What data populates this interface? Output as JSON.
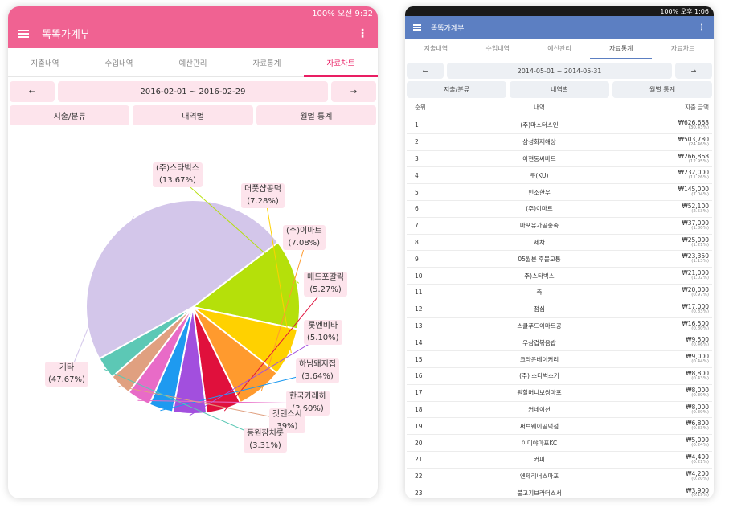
{
  "left": {
    "status": {
      "text": "100% 오전 9:32"
    },
    "app_title": "똑똑가계부",
    "tabs": [
      {
        "label": "지출내역"
      },
      {
        "label": "수입내역"
      },
      {
        "label": "예산관리"
      },
      {
        "label": "자료통계"
      },
      {
        "label": "자료차트"
      }
    ],
    "active_tab": 4,
    "date": {
      "prev": "←",
      "range": "2016-02-01 ~ 2016-02-29",
      "next": "→"
    },
    "buttons": {
      "category": "지출/분류",
      "detail": "내역별",
      "monthly": "월별 통계"
    }
  },
  "chart_data": {
    "type": "pie",
    "slices": [
      {
        "name": "(주)스타벅스",
        "value": 13.67,
        "label": "(13.67%)",
        "color": "#b5e00a"
      },
      {
        "name": "더풋샵공덕",
        "value": 7.28,
        "label": "(7.28%)",
        "color": "#ffd100"
      },
      {
        "name": "(주)이마트",
        "value": 7.08,
        "label": "(7.08%)",
        "color": "#ff9a2e"
      },
      {
        "name": "매드포갈릭",
        "value": 5.27,
        "label": "(5.27%)",
        "color": "#e0103c"
      },
      {
        "name": "롯엔비타",
        "value": 5.1,
        "label": "(5.10%)",
        "color": "#a24fde"
      },
      {
        "name": "하남돼지집",
        "value": 3.64,
        "label": "(3.64%)",
        "color": "#1e9af0"
      },
      {
        "name": "한국카레하",
        "value": 3.6,
        "label": "(3.60%)",
        "color": "#e86bc7"
      },
      {
        "name": "갓텐스시",
        "value": 3.39,
        "label": "39%)",
        "color": "#e0a080"
      },
      {
        "name": "동원참치롯",
        "value": 3.31,
        "label": "(3.31%)",
        "color": "#5cc8b5"
      },
      {
        "name": "기타",
        "value": 47.67,
        "label": "(47.67%)",
        "color": "#d3c6ea"
      }
    ]
  },
  "right": {
    "status": {
      "text": "100% 오후 1:06"
    },
    "app_title": "똑똑가계부",
    "tabs": [
      {
        "label": "지출내역"
      },
      {
        "label": "수입내역"
      },
      {
        "label": "예산관리"
      },
      {
        "label": "자료통계"
      },
      {
        "label": "자료차트"
      }
    ],
    "active_tab": 3,
    "date": {
      "prev": "←",
      "range": "2014-05-01 ~ 2014-05-31",
      "next": "→"
    },
    "buttons": {
      "category": "지출/분류",
      "detail": "내역별",
      "monthly": "월별 통계"
    },
    "table": {
      "headers": {
        "rank": "순위",
        "name": "내역",
        "amount": "지출 금액"
      },
      "rows": [
        {
          "rank": "1",
          "name": "(주)마스터스인",
          "amount": "₩626,668",
          "pct": "(30.43%)"
        },
        {
          "rank": "2",
          "name": "삼성화재해상",
          "amount": "₩503,780",
          "pct": "(24.46%)"
        },
        {
          "rank": "3",
          "name": "아현동씨바트",
          "amount": "₩266,868",
          "pct": "(12.95%)"
        },
        {
          "rank": "4",
          "name": "쿠(KU)",
          "amount": "₩232,000",
          "pct": "(11.26%)"
        },
        {
          "rank": "5",
          "name": "민소한우",
          "amount": "₩145,000",
          "pct": "(7.04%)"
        },
        {
          "rank": "6",
          "name": "(주)이마트",
          "amount": "₩52,100",
          "pct": "(2.53%)"
        },
        {
          "rank": "7",
          "name": "마포유가공송족",
          "amount": "₩37,000",
          "pct": "(1.80%)"
        },
        {
          "rank": "8",
          "name": "세차",
          "amount": "₩25,000",
          "pct": "(1.21%)"
        },
        {
          "rank": "9",
          "name": "05월분 후불교통",
          "amount": "₩23,350",
          "pct": "(1.13%)"
        },
        {
          "rank": "10",
          "name": "주)스타벅스",
          "amount": "₩21,000",
          "pct": "(1.02%)"
        },
        {
          "rank": "11",
          "name": "축",
          "amount": "₩20,000",
          "pct": "(0.97%)"
        },
        {
          "rank": "12",
          "name": "점심",
          "amount": "₩17,000",
          "pct": "(0.83%)"
        },
        {
          "rank": "13",
          "name": "스쿨푸드이마트공",
          "amount": "₩16,500",
          "pct": "(0.80%)"
        },
        {
          "rank": "14",
          "name": "우삼겹볶음밥",
          "amount": "₩9,500",
          "pct": "(0.46%)"
        },
        {
          "rank": "15",
          "name": "크라운베이커리",
          "amount": "₩9,000",
          "pct": "(0.44%)"
        },
        {
          "rank": "16",
          "name": "(주) 스타벅스커",
          "amount": "₩8,800",
          "pct": "(0.43%)"
        },
        {
          "rank": "17",
          "name": "원할머니보쌈마포",
          "amount": "₩8,000",
          "pct": "(0.39%)"
        },
        {
          "rank": "18",
          "name": "커네이션",
          "amount": "₩8,000",
          "pct": "(0.39%)"
        },
        {
          "rank": "19",
          "name": "써브웨이공덕점",
          "amount": "₩6,800",
          "pct": "(0.33%)"
        },
        {
          "rank": "20",
          "name": "이디야마포KC",
          "amount": "₩5,000",
          "pct": "(0.24%)"
        },
        {
          "rank": "21",
          "name": "커피",
          "amount": "₩4,400",
          "pct": "(0.21%)"
        },
        {
          "rank": "22",
          "name": "엔제리너스마포",
          "amount": "₩4,200",
          "pct": "(0.20%)"
        },
        {
          "rank": "23",
          "name": "불고기브라더스서",
          "amount": "₩3,900",
          "pct": "(0.19%)"
        }
      ]
    }
  }
}
